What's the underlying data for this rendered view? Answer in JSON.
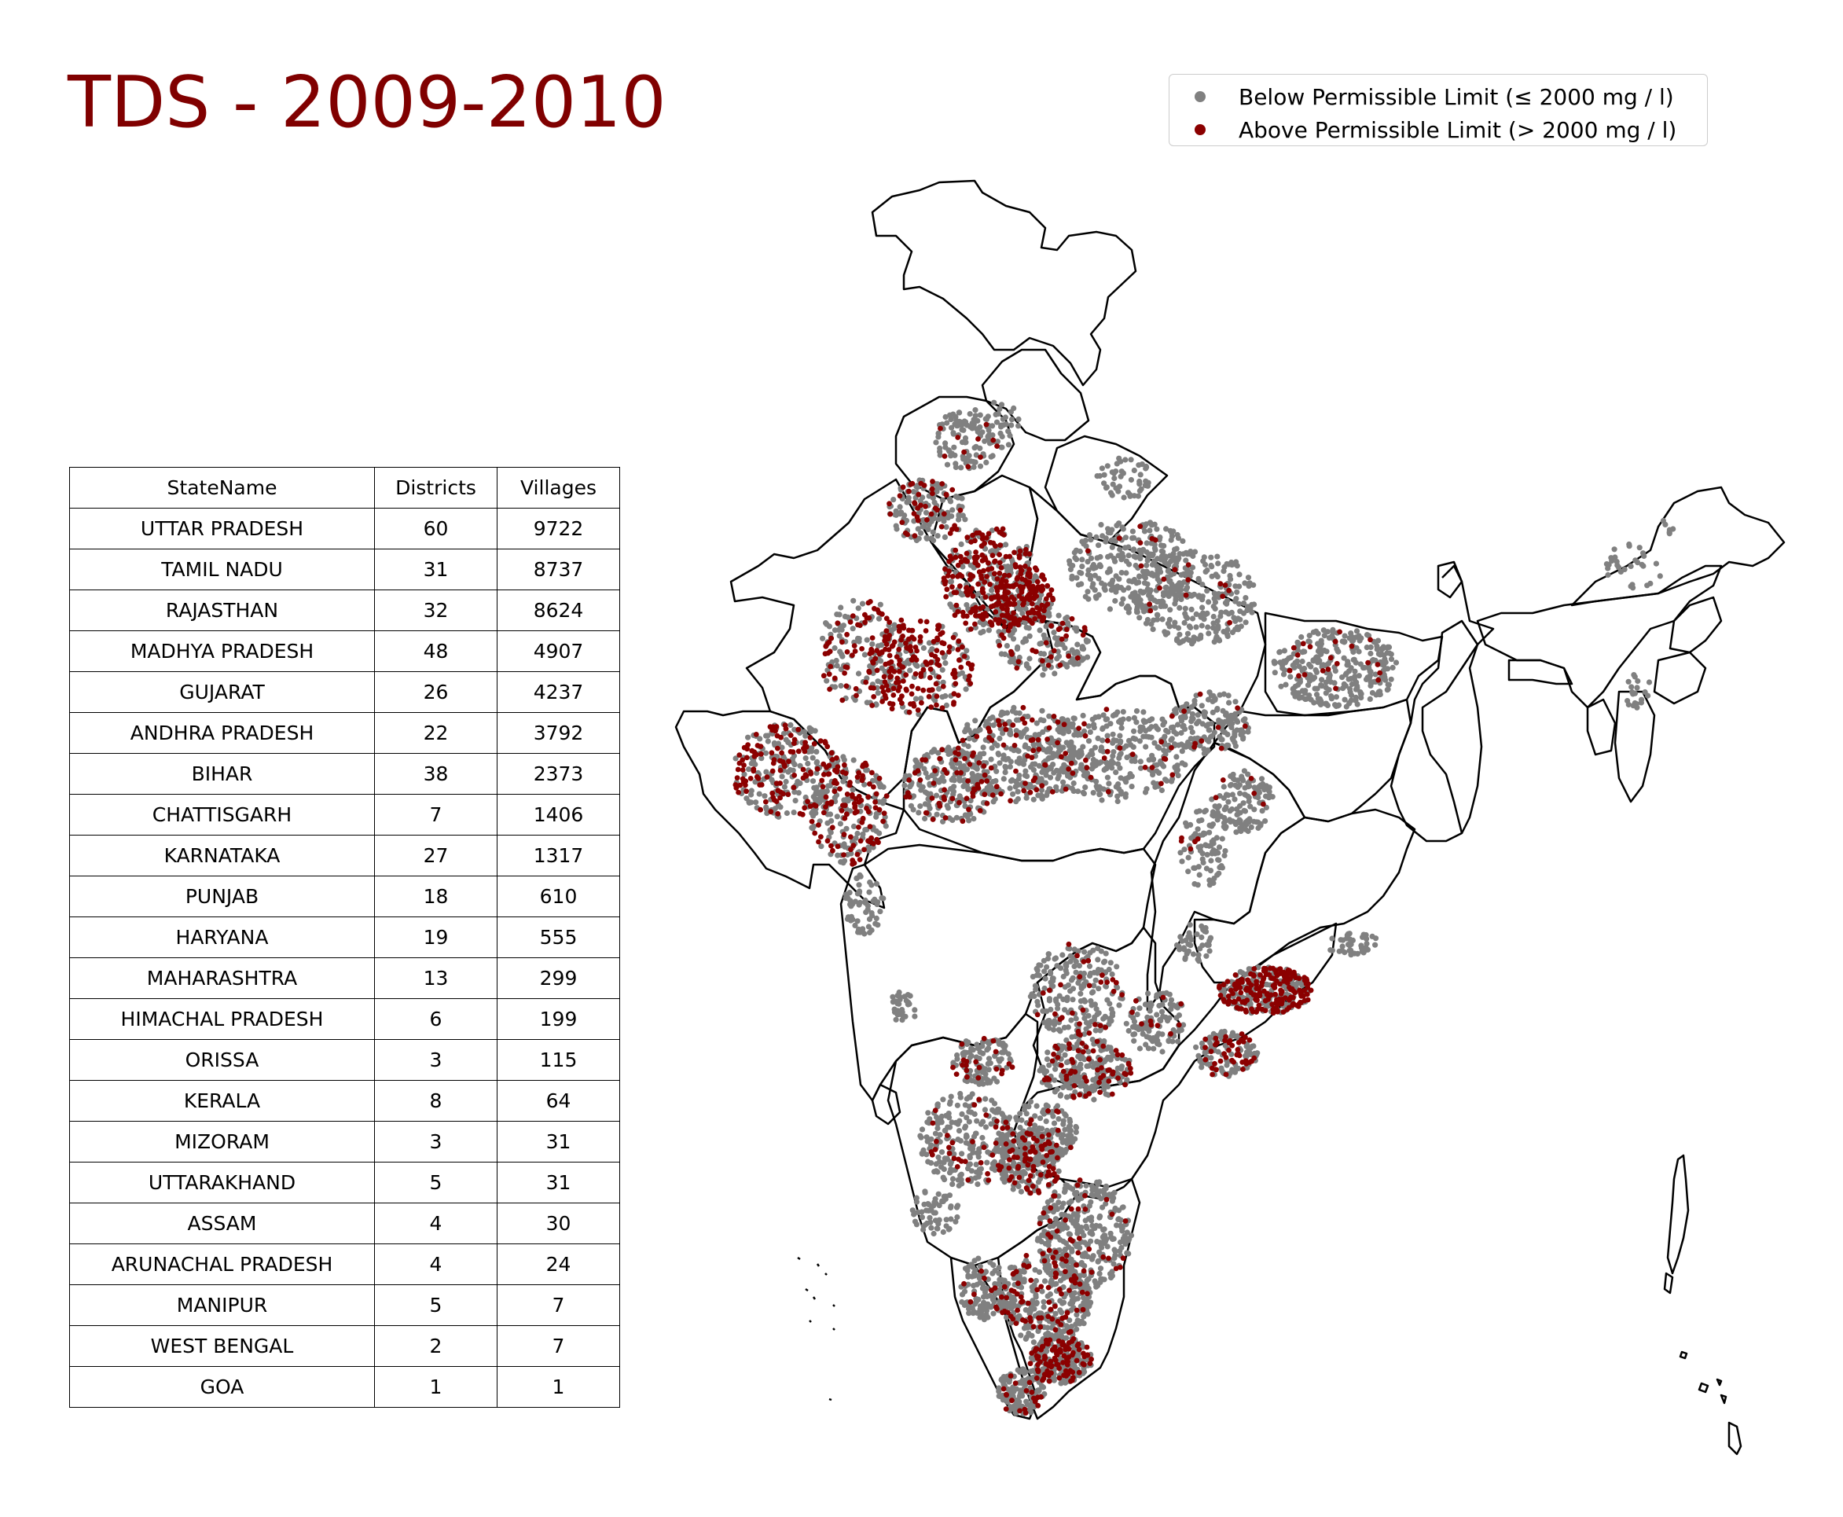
{
  "title": "TDS - 2009-2010",
  "colors": {
    "title": "#800000",
    "below": "#808080",
    "above": "#8b0000",
    "outline": "#000000"
  },
  "legend": {
    "below_label": "Below Permissible Limit (≤ 2000 mg / l)",
    "above_label": "Above Permissible Limit (> 2000 mg / l)"
  },
  "table": {
    "headers": [
      "StateName",
      "Districts",
      "Villages"
    ],
    "rows": [
      [
        "UTTAR PRADESH",
        "60",
        "9722"
      ],
      [
        "TAMIL NADU",
        "31",
        "8737"
      ],
      [
        "RAJASTHAN",
        "32",
        "8624"
      ],
      [
        "MADHYA PRADESH",
        "48",
        "4907"
      ],
      [
        "GUJARAT",
        "26",
        "4237"
      ],
      [
        "ANDHRA PRADESH",
        "22",
        "3792"
      ],
      [
        "BIHAR",
        "38",
        "2373"
      ],
      [
        "CHATTISGARH",
        "7",
        "1406"
      ],
      [
        "KARNATAKA",
        "27",
        "1317"
      ],
      [
        "PUNJAB",
        "18",
        "610"
      ],
      [
        "HARYANA",
        "19",
        "555"
      ],
      [
        "MAHARASHTRA",
        "13",
        "299"
      ],
      [
        "HIMACHAL PRADESH",
        "6",
        "199"
      ],
      [
        "ORISSA",
        "3",
        "115"
      ],
      [
        "KERALA",
        "8",
        "64"
      ],
      [
        "MIZORAM",
        "3",
        "31"
      ],
      [
        "UTTARAKHAND",
        "5",
        "31"
      ],
      [
        "ASSAM",
        "4",
        "30"
      ],
      [
        "ARUNACHAL PRADESH",
        "4",
        "24"
      ],
      [
        "MANIPUR",
        "5",
        "7"
      ],
      [
        "WEST BENGAL",
        "2",
        "7"
      ],
      [
        "GOA",
        "1",
        "1"
      ]
    ]
  }
}
